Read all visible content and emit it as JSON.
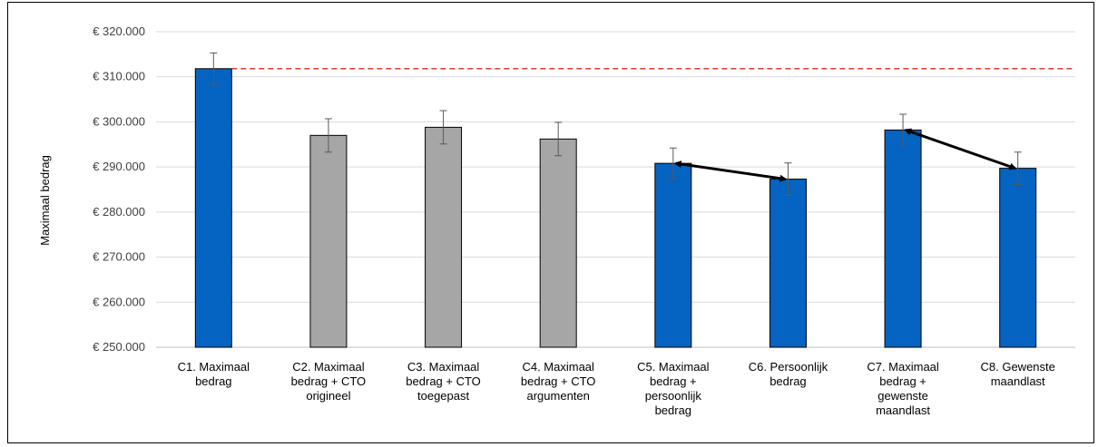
{
  "chart_data": {
    "type": "bar",
    "title": "",
    "xlabel": "",
    "ylabel": "Maximaal bedrag",
    "ylim": [
      250000,
      320000
    ],
    "ytick_values": [
      250000,
      260000,
      270000,
      280000,
      290000,
      300000,
      310000,
      320000
    ],
    "ytick_labels": [
      "€ 250.000",
      "€ 260.000",
      "€ 270.000",
      "€ 280.000",
      "€ 290.000",
      "€ 300.000",
      "€ 310.000",
      "€ 320.000"
    ],
    "grid": true,
    "legend": "none",
    "categories": [
      [
        "C1. Maximaal",
        "bedrag"
      ],
      [
        "C2. Maximaal",
        "bedrag + CTO",
        "origineel"
      ],
      [
        "C3. Maximaal",
        "bedrag + CTO",
        "toegepast"
      ],
      [
        "C4. Maximaal",
        "bedrag + CTO",
        "argumenten"
      ],
      [
        "C5. Maximaal",
        "bedrag +",
        "persoonlijk",
        "bedrag"
      ],
      [
        "C6. Persoonlijk",
        "bedrag"
      ],
      [
        "C7. Maximaal",
        "bedrag +",
        "gewenste",
        "maandlast"
      ],
      [
        "C8. Gewenste",
        "maandlast"
      ]
    ],
    "values": [
      311800,
      297000,
      298800,
      296200,
      290800,
      287300,
      298200,
      289700
    ],
    "error_low": [
      308300,
      293300,
      295100,
      292500,
      287400,
      283700,
      294700,
      286100
    ],
    "error_high": [
      315300,
      300700,
      302500,
      299900,
      294200,
      290900,
      301700,
      293300
    ],
    "bar_colors": [
      "#0563c1",
      "#a6a6a6",
      "#a6a6a6",
      "#a6a6a6",
      "#0563c1",
      "#0563c1",
      "#0563c1",
      "#0563c1"
    ],
    "reference_line": {
      "value": 311800,
      "color": "#e03c31",
      "style": "dashed"
    },
    "arrows": [
      {
        "from": 4,
        "to": 5
      },
      {
        "from": 6,
        "to": 7
      }
    ]
  }
}
